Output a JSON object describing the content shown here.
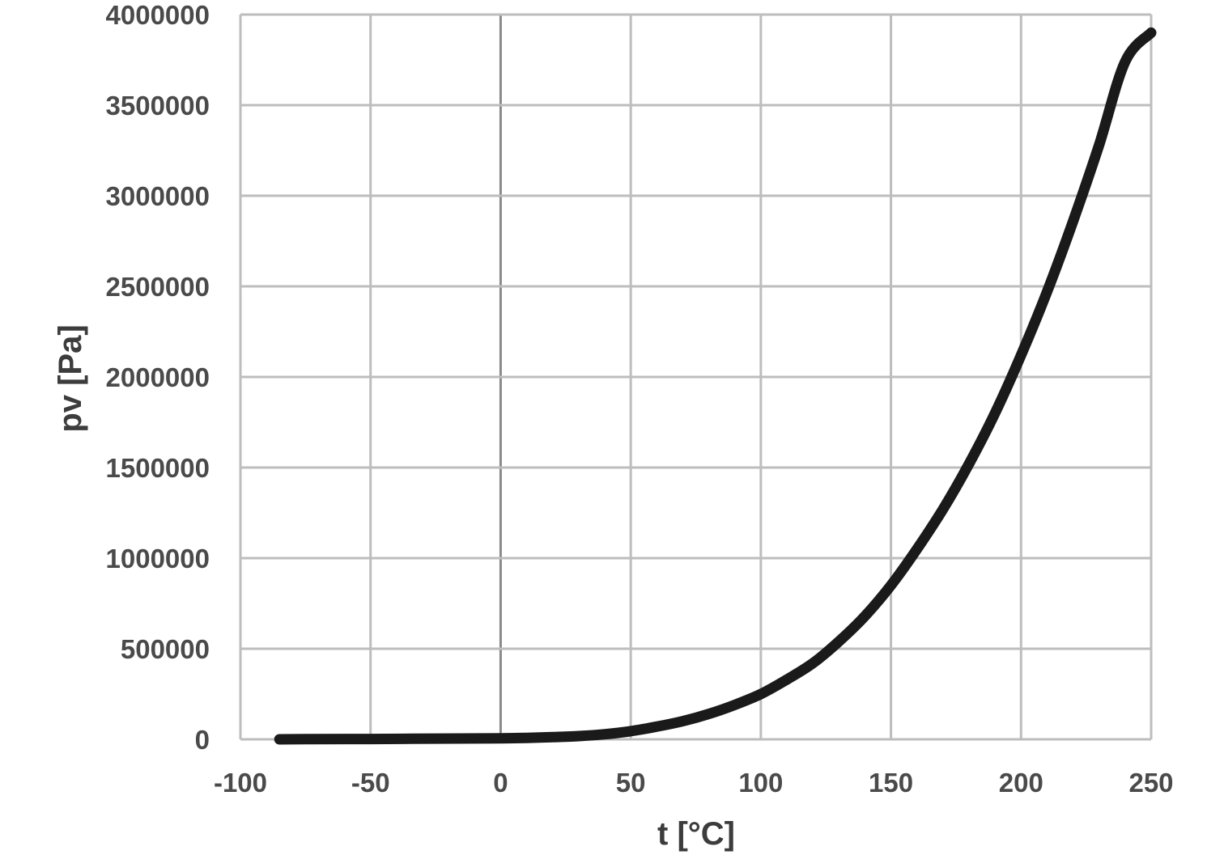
{
  "chart_data": {
    "type": "line",
    "title": "",
    "xlabel": "t [°C]",
    "ylabel": "pv [Pa]",
    "xlim": [
      -100,
      250
    ],
    "ylim": [
      0,
      4000000
    ],
    "x_ticks": [
      "-100",
      "-50",
      "0",
      "50",
      "100",
      "150",
      "200",
      "250"
    ],
    "y_ticks": [
      "0",
      "500000",
      "1000000",
      "1500000",
      "2000000",
      "2500000",
      "3000000",
      "3500000",
      "4000000"
    ],
    "grid": true,
    "legend": "none",
    "series": [
      {
        "color": "#1a1a1a",
        "x": [
          -85,
          -75,
          -50,
          -25,
          0,
          10,
          20,
          30,
          40,
          50,
          60,
          70,
          80,
          90,
          100,
          110,
          120,
          130,
          140,
          150,
          160,
          170,
          180,
          190,
          200,
          210,
          220,
          230,
          240,
          250
        ],
        "y": [
          0,
          1000,
          2000,
          4000,
          6000,
          8000,
          12000,
          18000,
          28000,
          45000,
          70000,
          100000,
          140000,
          190000,
          250000,
          330000,
          420000,
          540000,
          680000,
          850000,
          1050000,
          1270000,
          1520000,
          1800000,
          2120000,
          2470000,
          2860000,
          3280000,
          3740000,
          3900000
        ]
      }
    ]
  }
}
